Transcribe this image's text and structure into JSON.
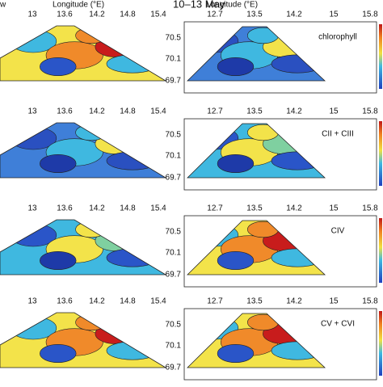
{
  "header": {
    "partial_label": "w",
    "left_axis_label": "Longitude (°E)",
    "title": "10–13 May",
    "right_axis_label": "Longitude (°E)"
  },
  "left_panels": [
    {
      "lon_ticks": [
        "13",
        "13.6",
        "14.2",
        "14.8",
        "15.4"
      ]
    },
    {
      "lon_ticks": [
        "13",
        "13.6",
        "14.2",
        "14.8",
        "15.4"
      ]
    },
    {
      "lon_ticks": [
        "13",
        "13.6",
        "14.2",
        "14.8",
        "15.4"
      ]
    },
    {
      "lon_ticks": [
        "13",
        "13.6",
        "14.2",
        "14.8",
        "15.4"
      ]
    }
  ],
  "right_panels": [
    {
      "label": "chlorophyll",
      "lon_ticks": [
        "12.7",
        "13.5",
        "14.2",
        "15",
        "15.8"
      ],
      "lat_ticks": [
        "70.5",
        "70.1",
        "69.7"
      ]
    },
    {
      "label": "CII + CIII",
      "lon_ticks": [
        "12.7",
        "13.5",
        "14.2",
        "15",
        "15.8"
      ],
      "lat_ticks": [
        "70.5",
        "70.1",
        "69.7"
      ]
    },
    {
      "label": "CIV",
      "lon_ticks": [
        "12.7",
        "13.5",
        "14.2",
        "15",
        "15.8"
      ],
      "lat_ticks": [
        "70.5",
        "70.1",
        "69.7"
      ]
    },
    {
      "label": "CV + CVI",
      "lon_ticks": [
        "12.7",
        "13.5",
        "14.2",
        "15",
        "15.8"
      ],
      "lat_ticks": [
        "70.5",
        "70.1",
        "69.7"
      ]
    }
  ]
}
